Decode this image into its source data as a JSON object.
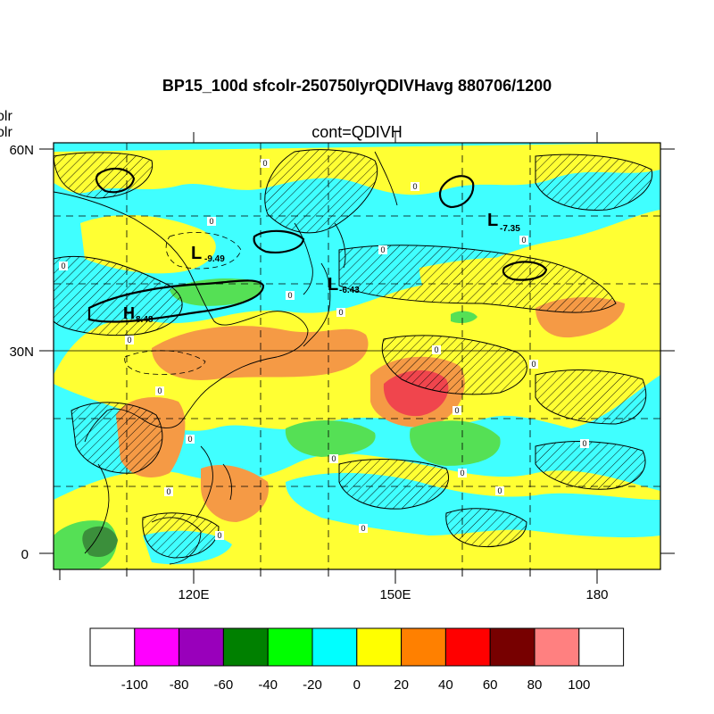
{
  "header": {
    "title": "BP15_100d sfcolr-250750lyrQDIVHavg  880706/1200",
    "subtitle": "cont=QDIVH",
    "left_labels": [
      "olr",
      "olr"
    ]
  },
  "map": {
    "lat_labels": [
      "60N",
      "30N",
      "0"
    ],
    "lon_labels": [
      "120E",
      "150E",
      "180"
    ],
    "pressure_centers": [
      {
        "symbol": "L",
        "value": "-9.49"
      },
      {
        "symbol": "L",
        "value": "-6.43"
      },
      {
        "symbol": "L",
        "value": "-7.35"
      },
      {
        "symbol": "H",
        "value": "8.48"
      }
    ],
    "contour_zero_label": "0"
  },
  "colorbar": {
    "ticks": [
      "-100",
      "-80",
      "-60",
      "-40",
      "-20",
      "0",
      "20",
      "40",
      "60",
      "80",
      "100"
    ],
    "colors": [
      "#ffffff",
      "#ff00ff",
      "#9900bb",
      "#008000",
      "#00ff00",
      "#00ffff",
      "#ffff00",
      "#ff8000",
      "#ff0000",
      "#770000",
      "#ff8080",
      "#ffffff"
    ]
  },
  "field_colors": {
    "cyan": "#40ffff",
    "yellow": "#ffff33",
    "orange": "#f59a45",
    "red": "#f0454d",
    "lightgreen": "#55e055",
    "darkgreen": "#3b8f3b"
  }
}
